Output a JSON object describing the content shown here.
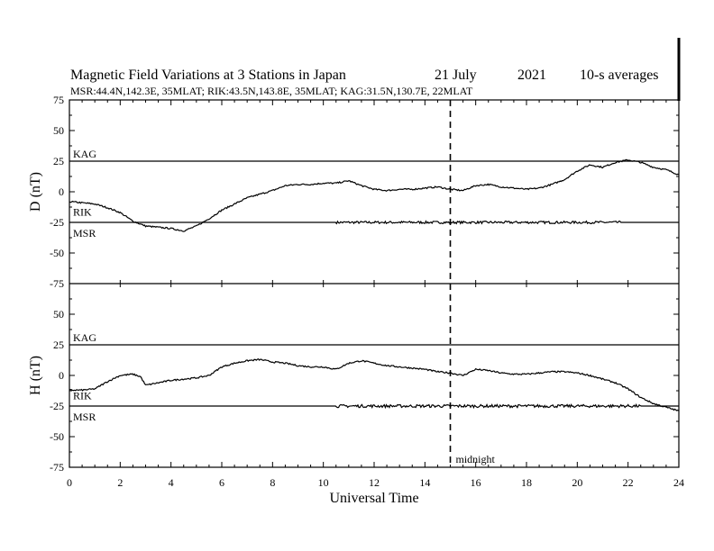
{
  "chart_data": {
    "type": "line",
    "title": {
      "main": "Magnetic Field Variations at 3 Stations in Japan",
      "date_day_month": "21 July",
      "year": "2021",
      "averaging": "10-s averages"
    },
    "subtitle": "MSR:44.4N,142.3E, 35MLAT;  RIK:43.5N,143.8E, 35MLAT;  KAG:31.5N,130.7E, 22MLAT",
    "xlabel": "Universal Time",
    "xlim": [
      0,
      24
    ],
    "x_ticks": [
      "0",
      "2",
      "4",
      "6",
      "8",
      "10",
      "12",
      "14",
      "16",
      "18",
      "20",
      "22",
      "24"
    ],
    "annotation": {
      "x": 15,
      "label": "midnight"
    },
    "panels": [
      {
        "ylabel": "D (nT)",
        "ylim": [
          -75,
          75
        ],
        "y_ticks": [
          "75",
          "50",
          "25",
          "0",
          "-25",
          "-50",
          "-75"
        ],
        "stations": [
          {
            "name": "KAG",
            "offset": 25
          },
          {
            "name": "RIK",
            "offset": -13
          },
          {
            "name": "MSR",
            "offset": -25
          }
        ],
        "series": [
          {
            "name": "KAG",
            "x": [
              0,
              24
            ],
            "y": [
              25,
              25
            ]
          },
          {
            "name": "MSR",
            "x": [
              0,
              10.4,
              10.5,
              24
            ],
            "y": [
              -25,
              -25,
              -25,
              -25
            ],
            "noisy_from": 10.5,
            "noise_to": 21.7,
            "noise_amp": 1
          },
          {
            "name": "RIK",
            "x": [
              0,
              0.5,
              1,
              1.5,
              2,
              2.5,
              3,
              3.5,
              4,
              4.5,
              5,
              5.5,
              6,
              6.5,
              7,
              7.5,
              8,
              8.5,
              9,
              9.5,
              10,
              10.5,
              11,
              11.5,
              12,
              12.5,
              13,
              13.5,
              14,
              14.5,
              15,
              15.5,
              16,
              16.5,
              17,
              17.5,
              18,
              18.5,
              19,
              19.5,
              20,
              20.5,
              21,
              21.5,
              22,
              22.5,
              23,
              23.5,
              24
            ],
            "y": [
              -8,
              -9,
              -10,
              -13,
              -17,
              -24,
              -28,
              -29,
              -30,
              -32,
              -28,
              -22,
              -15,
              -10,
              -5,
              -2,
              1,
              5,
              6,
              6,
              7,
              7,
              9,
              5,
              2,
              1,
              2,
              2,
              3,
              4,
              2,
              1,
              5,
              6,
              4,
              3,
              2,
              3,
              6,
              10,
              17,
              22,
              20,
              24,
              26,
              24,
              20,
              18,
              14
            ],
            "noise_amp": 1
          }
        ]
      },
      {
        "ylabel": "H (nT)",
        "ylim": [
          -75,
          75
        ],
        "y_ticks": [
          "75",
          "50",
          "25",
          "0",
          "-25",
          "-50",
          "-75"
        ],
        "stations": [
          {
            "name": "KAG",
            "offset": 25
          },
          {
            "name": "RIK",
            "offset": -13
          },
          {
            "name": "MSR",
            "offset": -25
          }
        ],
        "series": [
          {
            "name": "KAG",
            "x": [
              0,
              24
            ],
            "y": [
              25,
              25
            ]
          },
          {
            "name": "MSR",
            "x": [
              0,
              10.4,
              10.5,
              24
            ],
            "y": [
              -25,
              -25,
              -25,
              -25
            ],
            "noisy_from": 10.5,
            "noise_to": 22.5,
            "noise_amp": 1.2
          },
          {
            "name": "RIK",
            "x": [
              0,
              0.5,
              1,
              1.5,
              2,
              2.5,
              2.8,
              3,
              3.5,
              4,
              4.5,
              5,
              5.5,
              6,
              6.5,
              7,
              7.5,
              8,
              8.5,
              9,
              9.5,
              10,
              10.5,
              11,
              11.5,
              12,
              12.5,
              13,
              13.5,
              14,
              14.5,
              15,
              15.5,
              16,
              16.5,
              17,
              17.5,
              18,
              18.5,
              19,
              19.5,
              20,
              20.5,
              21,
              21.5,
              22,
              22.5,
              23,
              23.5,
              24
            ],
            "y": [
              -12,
              -12,
              -11,
              -5,
              0,
              1,
              -1,
              -8,
              -6,
              -4,
              -3,
              -2,
              0,
              7,
              10,
              12,
              13,
              11,
              10,
              8,
              7,
              7,
              5,
              10,
              12,
              10,
              8,
              7,
              6,
              5,
              3,
              2,
              0,
              5,
              4,
              2,
              1,
              1,
              2,
              3,
              3,
              2,
              0,
              -3,
              -6,
              -11,
              -18,
              -23,
              -26,
              -29
            ],
            "noise_amp": 1
          }
        ]
      }
    ]
  }
}
